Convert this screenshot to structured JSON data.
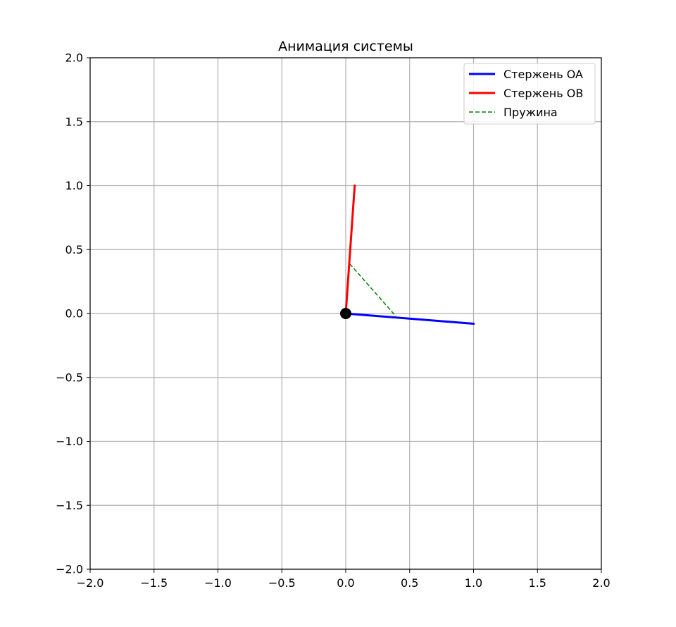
{
  "chart_data": {
    "type": "line",
    "title": "Анимация системы",
    "xlabel": "",
    "ylabel": "",
    "xlim": [
      -2.0,
      2.0
    ],
    "ylim": [
      -2.0,
      2.0
    ],
    "grid": true,
    "legend_position": "top-right",
    "x_ticks": [
      "−2.0",
      "−1.5",
      "−1.0",
      "−0.5",
      "0.0",
      "0.5",
      "1.0",
      "1.5",
      "2.0"
    ],
    "y_ticks": [
      "−2.0",
      "−1.5",
      "−1.0",
      "−0.5",
      "0.0",
      "0.5",
      "1.0",
      "1.5",
      "2.0"
    ],
    "x_tick_values": [
      -2.0,
      -1.5,
      -1.0,
      -0.5,
      0.0,
      0.5,
      1.0,
      1.5,
      2.0
    ],
    "y_tick_values": [
      -2.0,
      -1.5,
      -1.0,
      -0.5,
      0.0,
      0.5,
      1.0,
      1.5,
      2.0
    ],
    "series": [
      {
        "name": "Стержень OA",
        "color": "#0000ff",
        "style": "solid",
        "x": [
          0.0,
          1.0
        ],
        "y": [
          0.0,
          -0.08
        ]
      },
      {
        "name": "Стержень OB",
        "color": "#ff0000",
        "style": "solid",
        "x": [
          0.0,
          0.07
        ],
        "y": [
          0.0,
          1.0
        ]
      },
      {
        "name": "Пружина",
        "color": "#008000",
        "style": "dashed",
        "x": [
          0.03,
          0.4
        ],
        "y": [
          0.39,
          -0.03
        ]
      }
    ],
    "pivot": {
      "x": 0.0,
      "y": 0.0,
      "color": "#000000"
    }
  }
}
